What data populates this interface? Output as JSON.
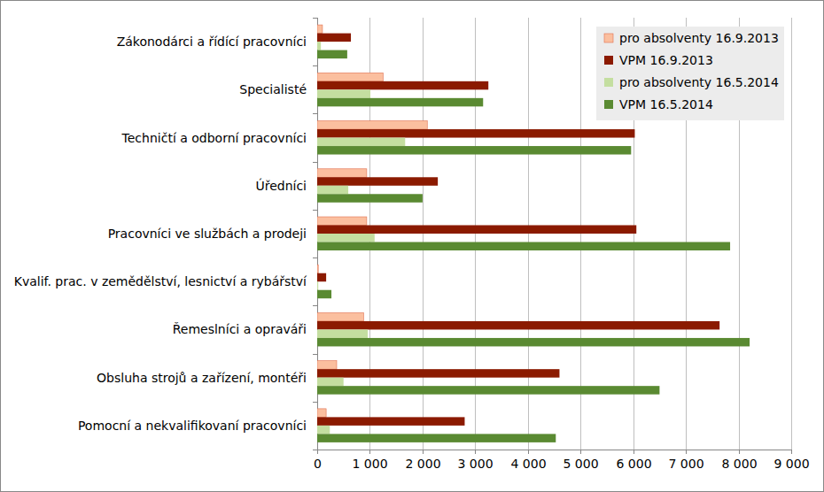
{
  "chart_data": {
    "type": "bar",
    "orientation": "horizontal",
    "grid": true,
    "legend": "top-right",
    "categories": [
      "Zákonodárci a řídící pracovníci",
      "Specialisté",
      "Techničtí a odborní pracovníci",
      "Úředníci",
      "Pracovníci ve službách a prodeji",
      "Kvalif. prac. v zemědělství, lesnictví a rybářství",
      "Řemeslníci a opraváři",
      "Obsluha strojů a zařízení, montéři",
      "Pomocní a nekvalifikovaní pracovníci"
    ],
    "series": [
      {
        "name": "pro absolventy 16.9.2013",
        "color": "#fbbf9f",
        "values": [
          100,
          1250,
          2090,
          940,
          940,
          20,
          880,
          370,
          170
        ]
      },
      {
        "name": "VPM 16.9.2013",
        "color": "#8b1a00",
        "values": [
          640,
          3250,
          6030,
          2290,
          6060,
          170,
          7640,
          4600,
          2800
        ]
      },
      {
        "name": "pro absolventy 16.5.2014",
        "color": "#c4dea0",
        "values": [
          70,
          1010,
          1670,
          590,
          1090,
          20,
          960,
          500,
          240
        ]
      },
      {
        "name": "VPM 16.5.2014",
        "color": "#5a8a32",
        "values": [
          570,
          3150,
          5960,
          2000,
          7840,
          270,
          8210,
          6500,
          4530
        ]
      }
    ],
    "xlim": [
      0,
      9000
    ],
    "xticks": [
      0,
      {
        "value": 1000,
        "label": "1 000"
      },
      {
        "value": 2000,
        "label": "2 000"
      },
      {
        "value": 3000,
        "label": "3 000"
      },
      {
        "value": 4000,
        "label": "4 000"
      },
      {
        "value": 5000,
        "label": "5 000"
      },
      {
        "value": 6000,
        "label": "6 000"
      },
      {
        "value": 7000,
        "label": "7 000"
      },
      {
        "value": 8000,
        "label": "8 000"
      },
      {
        "value": 9000,
        "label": "9 000"
      }
    ]
  }
}
